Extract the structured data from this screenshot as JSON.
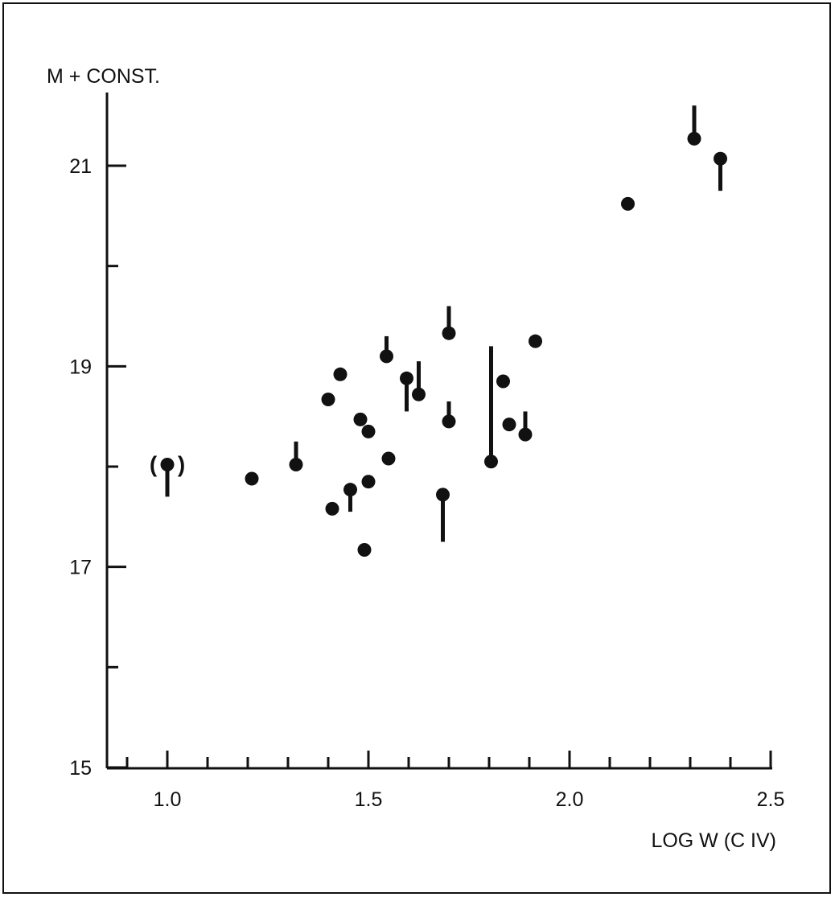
{
  "chart_data": {
    "type": "scatter",
    "ylabel": "M + CONST.",
    "xlabel": "LOG W (C IV)",
    "xlim": [
      0.855,
      2.5
    ],
    "ylim": [
      14.8,
      21.7
    ],
    "x_ticks_labeled": [
      "1.0",
      "1.5",
      "2.0",
      "2.5"
    ],
    "x_tick_values": [
      1.0,
      1.5,
      2.0,
      2.5
    ],
    "x_minor_step": 0.1,
    "y_ticks_labeled": [
      "21",
      "19",
      "17",
      "15"
    ],
    "y_tick_values": [
      21,
      19,
      17,
      15
    ],
    "y_minor_step": 1,
    "grid": false,
    "annotations": [
      {
        "text": "(",
        "x": 0.965,
        "y": 18.02
      },
      {
        "text": ")",
        "x": 1.035,
        "y": 18.02
      }
    ],
    "series": [
      {
        "marker": "filled-circle",
        "error_bar": "one-sided vertical",
        "points": [
          {
            "x": 1.0,
            "y": 18.02,
            "bar_to": 17.7
          },
          {
            "x": 1.21,
            "y": 17.88
          },
          {
            "x": 1.32,
            "y": 18.02,
            "bar_to": 18.25
          },
          {
            "x": 1.4,
            "y": 18.67
          },
          {
            "x": 1.41,
            "y": 17.58
          },
          {
            "x": 1.43,
            "y": 18.92
          },
          {
            "x": 1.455,
            "y": 17.77,
            "bar_to": 17.55
          },
          {
            "x": 1.48,
            "y": 18.47
          },
          {
            "x": 1.49,
            "y": 17.17
          },
          {
            "x": 1.5,
            "y": 18.35
          },
          {
            "x": 1.5,
            "y": 17.85
          },
          {
            "x": 1.545,
            "y": 19.1,
            "bar_to": 19.3
          },
          {
            "x": 1.55,
            "y": 18.08
          },
          {
            "x": 1.595,
            "y": 18.88,
            "bar_to": 18.55
          },
          {
            "x": 1.625,
            "y": 18.72,
            "bar_to": 19.05
          },
          {
            "x": 1.685,
            "y": 17.72,
            "bar_to": 17.25
          },
          {
            "x": 1.7,
            "y": 19.33,
            "bar_to": 19.6
          },
          {
            "x": 1.7,
            "y": 18.45,
            "bar_to": 18.65
          },
          {
            "x": 1.805,
            "y": 18.05,
            "bar_to": 19.2
          },
          {
            "x": 1.835,
            "y": 18.85
          },
          {
            "x": 1.85,
            "y": 18.42
          },
          {
            "x": 1.89,
            "y": 18.32,
            "bar_to": 18.55
          },
          {
            "x": 1.915,
            "y": 19.25
          },
          {
            "x": 2.145,
            "y": 20.62
          },
          {
            "x": 2.31,
            "y": 21.27,
            "bar_to": 21.6
          },
          {
            "x": 2.375,
            "y": 21.07,
            "bar_to": 20.75
          }
        ]
      }
    ]
  }
}
